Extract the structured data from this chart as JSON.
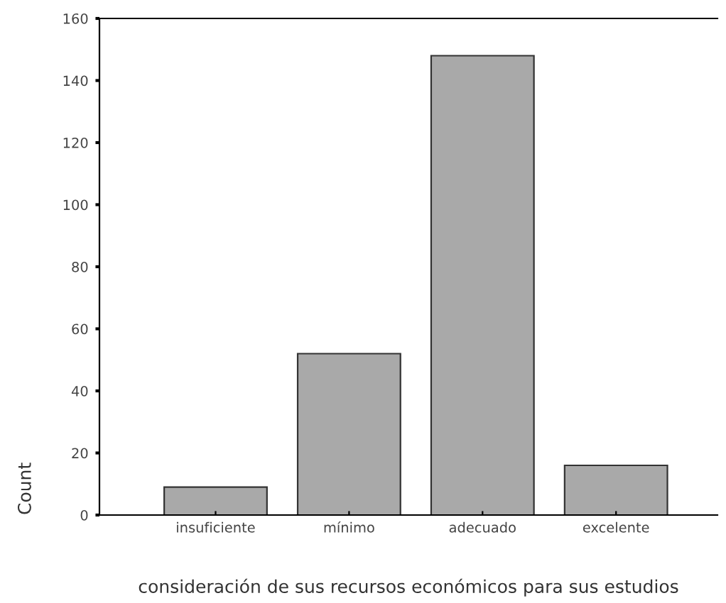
{
  "chart_data": {
    "type": "bar",
    "xlabel": "consideración de sus recursos económicos para sus estudios",
    "ylabel": "Count",
    "categories": [
      "insuficiente",
      "mínimo",
      "adecuado",
      "excelente"
    ],
    "values": [
      9,
      52,
      148,
      16
    ],
    "color": "#a9a9a9",
    "ylim": [
      0,
      160
    ],
    "yticks": [
      0,
      20,
      40,
      60,
      80,
      100,
      120,
      140,
      160
    ],
    "grid": false
  }
}
